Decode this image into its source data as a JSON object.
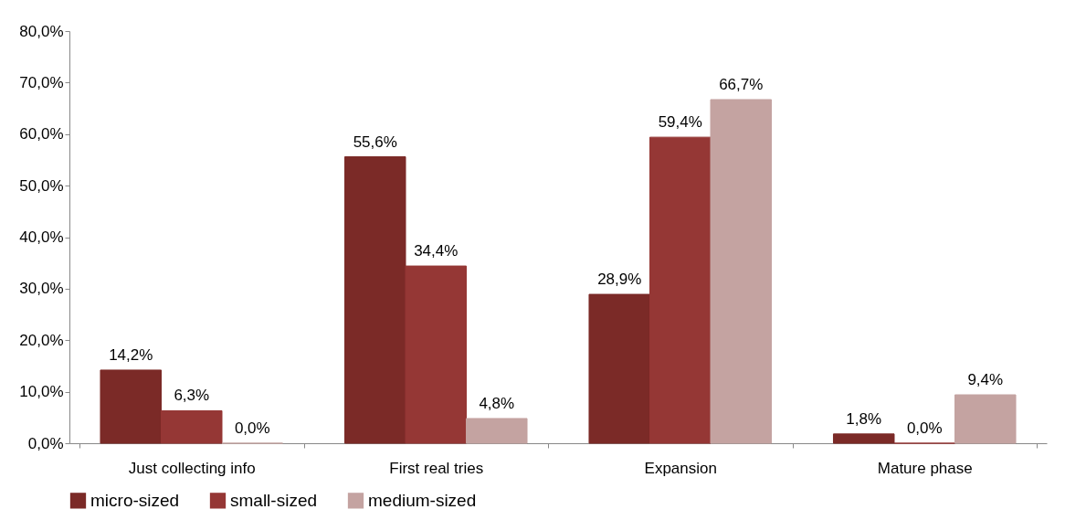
{
  "chart_data": {
    "type": "bar",
    "categories": [
      "Just collecting info",
      "First real tries",
      "Expansion",
      "Mature phase"
    ],
    "series": [
      {
        "name": "micro-sized",
        "color": "#7b2a27",
        "values": [
          14.2,
          55.6,
          28.9,
          1.8
        ],
        "value_labels": [
          "14,2%",
          "55,6%",
          "28,9%",
          "1,8%"
        ]
      },
      {
        "name": "small-sized",
        "color": "#953735",
        "values": [
          6.3,
          34.4,
          59.4,
          0.0
        ],
        "value_labels": [
          "6,3%",
          "34,4%",
          "59,4%",
          "0,0%"
        ]
      },
      {
        "name": "medium-sized",
        "color": "#c4a3a1",
        "values": [
          0.0,
          4.8,
          66.7,
          9.4
        ],
        "value_labels": [
          "0,0%",
          "4,8%",
          "66,7%",
          "9,4%"
        ]
      }
    ],
    "ylim": [
      0,
      80
    ],
    "yticks": [
      {
        "value": 0,
        "label": "0,0%"
      },
      {
        "value": 10,
        "label": "10,0%"
      },
      {
        "value": 20,
        "label": "20,0%"
      },
      {
        "value": 30,
        "label": "30,0%"
      },
      {
        "value": 40,
        "label": "40,0%"
      },
      {
        "value": 50,
        "label": "50,0%"
      },
      {
        "value": 60,
        "label": "60,0%"
      },
      {
        "value": 70,
        "label": "70,0%"
      },
      {
        "value": 80,
        "label": "80,0%"
      }
    ],
    "grid": false,
    "legend": "bottom"
  }
}
